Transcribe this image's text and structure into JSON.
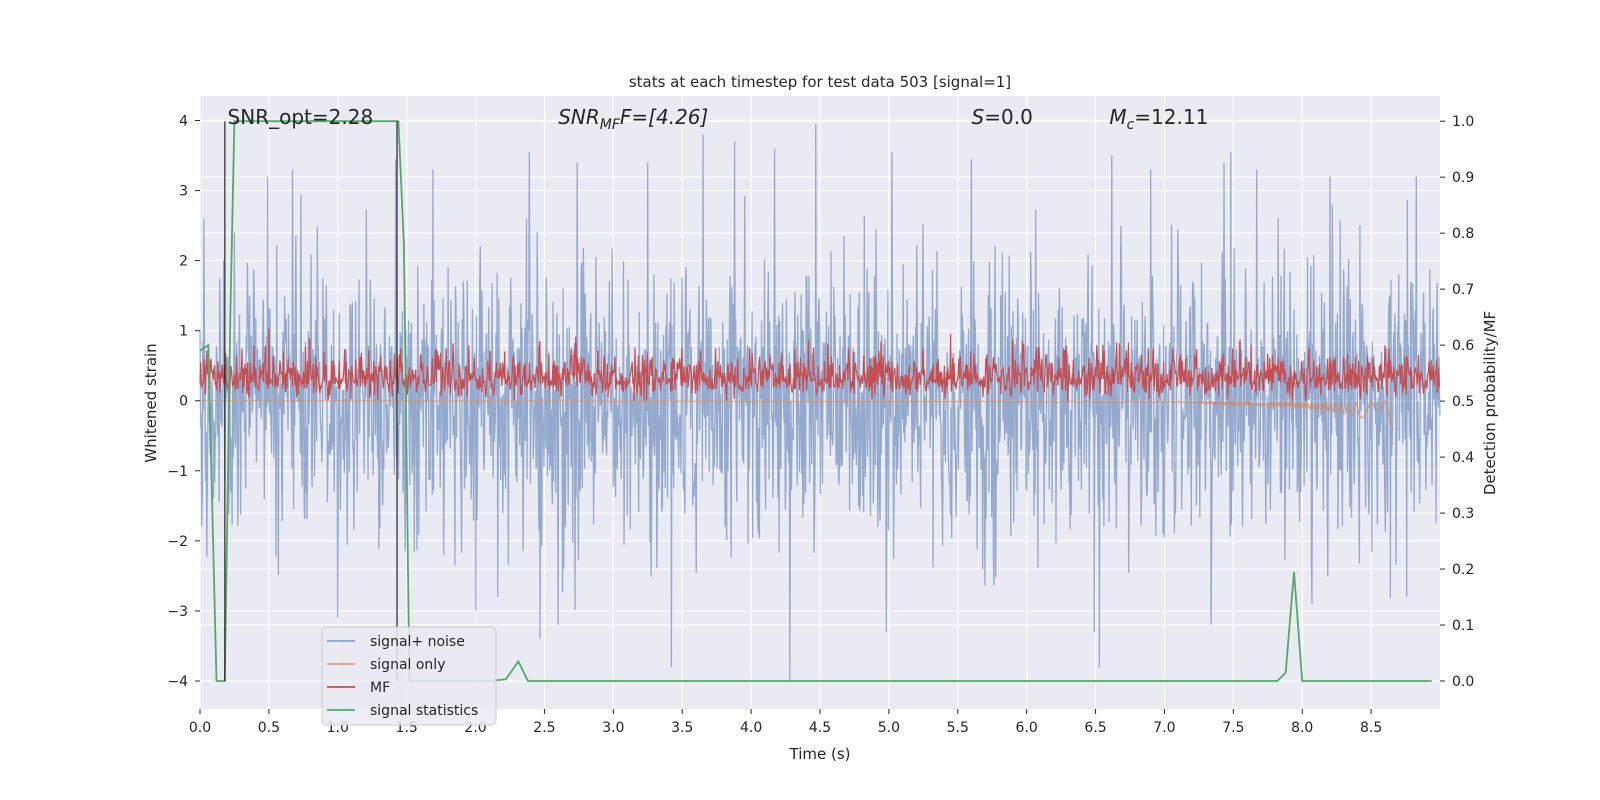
{
  "chart_data": {
    "type": "line",
    "title": "stats at each timestep for test data 503 [signal=1]",
    "xlabel": "Time (s)",
    "ylabel": "Whitened strain",
    "ylabel_right": "Detection probability/MF",
    "xlim": [
      0,
      9.0
    ],
    "ylim": [
      -4.4,
      4.35
    ],
    "ylim_right": [
      -0.05,
      1.045
    ],
    "x_ticks": [
      "0.0",
      "0.5",
      "1.0",
      "1.5",
      "2.0",
      "2.5",
      "3.0",
      "3.5",
      "4.0",
      "4.5",
      "5.0",
      "5.5",
      "6.0",
      "6.5",
      "7.0",
      "7.5",
      "8.0",
      "8.5"
    ],
    "x_tick_values": [
      0,
      0.5,
      1,
      1.5,
      2,
      2.5,
      3,
      3.5,
      4,
      4.5,
      5,
      5.5,
      6,
      6.5,
      7,
      7.5,
      8,
      8.5
    ],
    "y_ticks": [
      "4",
      "3",
      "2",
      "1",
      "0",
      "−1",
      "−2",
      "−3",
      "−4"
    ],
    "y_tick_values": [
      4,
      3,
      2,
      1,
      0,
      -1,
      -2,
      -3,
      -4
    ],
    "y_right_ticks": [
      "1.0",
      "0.9",
      "0.8",
      "0.7",
      "0.6",
      "0.5",
      "0.4",
      "0.3",
      "0.2",
      "0.1",
      "0.0"
    ],
    "y_right_tick_values": [
      1.0,
      0.9,
      0.8,
      0.7,
      0.6,
      0.5,
      0.4,
      0.3,
      0.2,
      0.1,
      0.0
    ],
    "grid": true,
    "annotations": [
      {
        "text": "SNR_opt=2.28",
        "x": 0.2,
        "y": 4.05
      },
      {
        "text_parts": [
          [
            "SNR",
            "i"
          ],
          [
            "MF",
            "sub-i"
          ],
          [
            "F=[4.26]",
            "m"
          ]
        ],
        "x": 2.6,
        "y": 4.05
      },
      {
        "text_parts": [
          [
            "S",
            "i"
          ],
          [
            "=0.0",
            "n"
          ]
        ],
        "x": 5.6,
        "y": 4.05
      },
      {
        "text_parts": [
          [
            "M",
            "i"
          ],
          [
            "c",
            "sub-i"
          ],
          [
            "=12.11",
            "n"
          ]
        ],
        "x": 6.6,
        "y": 4.05
      }
    ],
    "legend_position": "lower-left",
    "series": [
      {
        "name": "signal+ noise",
        "color": "#4c72b0",
        "axis": "left",
        "kind": "noise",
        "sigma": 0.95,
        "x_range": [
          0,
          9.0
        ],
        "samples": 2200,
        "extrema": [
          [
            0.03,
            2.6
          ],
          [
            0.25,
            2.4
          ],
          [
            0.49,
            3.2
          ],
          [
            0.67,
            3.3
          ],
          [
            1.0,
            -3.1
          ],
          [
            1.42,
            3.45
          ],
          [
            1.69,
            3.3
          ],
          [
            2.0,
            -3.0
          ],
          [
            2.16,
            -2.8
          ],
          [
            2.39,
            3.55
          ],
          [
            2.6,
            -3.2
          ],
          [
            2.74,
            3.4
          ],
          [
            3.25,
            3.4
          ],
          [
            3.42,
            -3.8
          ],
          [
            3.65,
            3.8
          ],
          [
            3.88,
            3.7
          ],
          [
            4.17,
            3.6
          ],
          [
            4.28,
            -4.0
          ],
          [
            4.47,
            3.95
          ],
          [
            4.98,
            -3.3
          ],
          [
            5.02,
            3.55
          ],
          [
            5.6,
            3.45
          ],
          [
            6.49,
            -3.3
          ],
          [
            6.53,
            -3.8
          ],
          [
            6.62,
            3.5
          ],
          [
            6.9,
            3.3
          ],
          [
            7.34,
            -3.2
          ],
          [
            7.48,
            3.55
          ],
          [
            7.67,
            3.3
          ],
          [
            8.07,
            -2.9
          ],
          [
            8.2,
            3.2
          ],
          [
            8.76,
            -2.8
          ],
          [
            8.83,
            3.2
          ]
        ]
      },
      {
        "name": "signal only",
        "color": "#dd8452",
        "axis": "left",
        "kind": "chirp",
        "x": [
          0.0,
          7.0,
          8.0,
          8.3,
          8.5,
          8.6,
          8.66
        ],
        "amplitude": [
          0.0,
          0.02,
          0.1,
          0.18,
          0.28,
          0.38,
          0.42
        ]
      },
      {
        "name": "MF",
        "color": "#c44e52",
        "axis": "right",
        "kind": "mf_noise",
        "baseline": 0.54,
        "spread": 0.025,
        "x_range": [
          0,
          9.0
        ],
        "samples": 1800,
        "extrema": [
          [
            0.05,
            0.59
          ],
          [
            0.5,
            0.63
          ],
          [
            1.95,
            0.6
          ],
          [
            5.45,
            0.62
          ],
          [
            5.9,
            0.61
          ],
          [
            7.55,
            0.61
          ],
          [
            8.6,
            0.6
          ]
        ]
      },
      {
        "name": "signal statistics",
        "color": "#55a868",
        "axis": "right",
        "kind": "line",
        "x": [
          0.0,
          0.06,
          0.12,
          0.18,
          0.22,
          0.25,
          0.3,
          1.44,
          1.48,
          1.52,
          2.1,
          2.22,
          2.31,
          2.38,
          2.6,
          7.82,
          7.88,
          7.94,
          8.0,
          8.94
        ],
        "y": [
          0.59,
          0.6,
          0.0,
          0.0,
          0.65,
          1.0,
          1.0,
          1.0,
          0.78,
          0.0,
          0.0,
          0.003,
          0.035,
          0.0,
          0.0,
          0.0,
          0.015,
          0.195,
          0.0,
          0.0
        ]
      }
    ],
    "vertical_markers": [
      {
        "x": 0.18,
        "color": "#262626"
      },
      {
        "x": 1.43,
        "color": "#262626"
      }
    ]
  }
}
